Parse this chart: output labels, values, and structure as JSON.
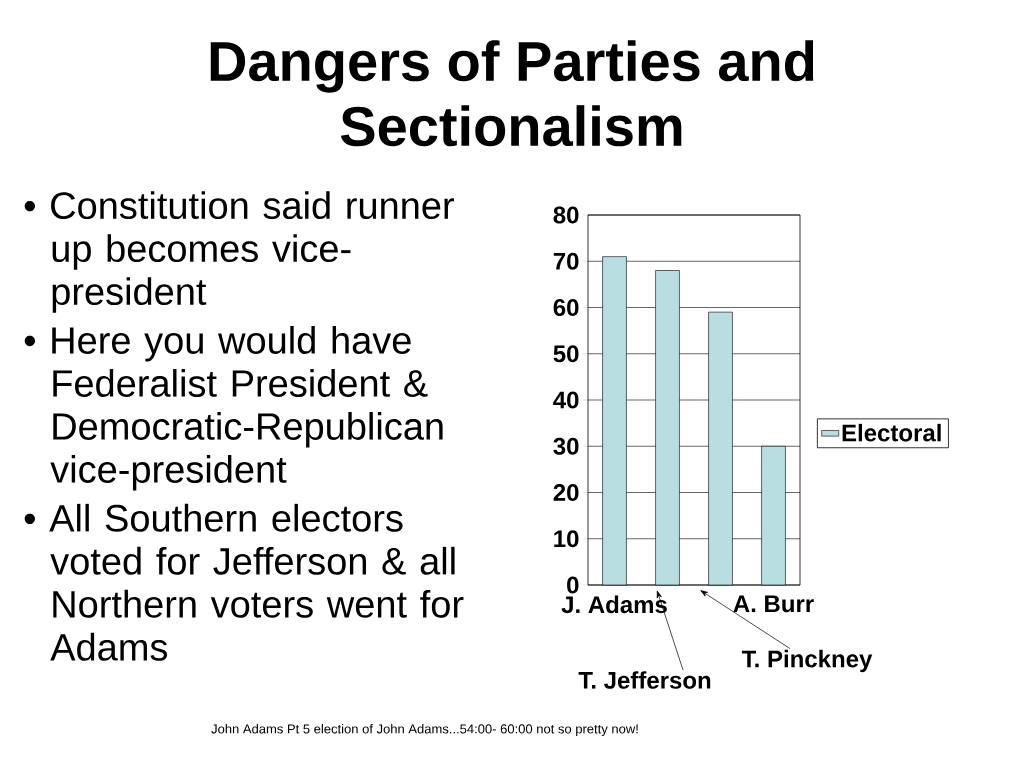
{
  "chart_data": {
    "type": "bar",
    "title": "Dangers of Parties and Sectionalism",
    "categories": [
      "J. Adams",
      null,
      null,
      "A. Burr"
    ],
    "series": [
      {
        "name": "Electoral",
        "color": "#b9dee2",
        "values": [
          71,
          68,
          59,
          30
        ]
      }
    ],
    "ylim": [
      0,
      80
    ],
    "yticks": [
      0,
      10,
      20,
      30,
      40,
      50,
      60,
      70,
      80
    ],
    "grid": "y",
    "legend": "right",
    "annotations": [
      "• Constitution said runner up becomes vice-president",
      "• Here you would have Federalist President & Democratic-Republican vice-president",
      "• All Southern electors voted for Jefferson & all Northern voters went for Adams",
      "T. Jefferson",
      "T. Pinckney",
      "John Adams Pt 5 election of John Adams...54:00- 60:00 not so pretty now!"
    ]
  }
}
